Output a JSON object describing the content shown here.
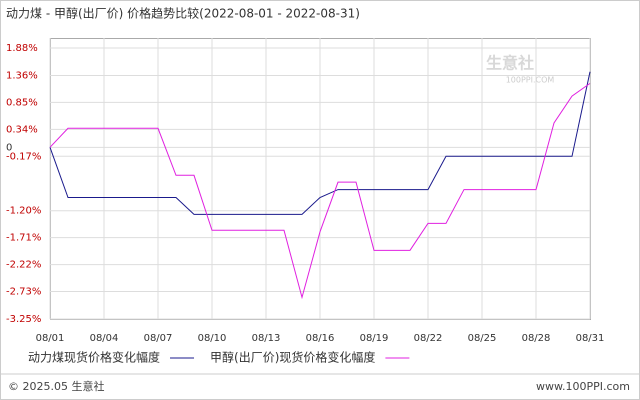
{
  "chart_data": {
    "type": "line",
    "title": "动力煤 - 甲醇(出厂价) 价格趋势比较(2022-08-01 - 2022-08-31)",
    "watermark": "生意社",
    "watermark_url": "100PPI.COM",
    "footer_left": "© 2025.05 生意社",
    "footer_right": "www.100PPI.com",
    "categories": [
      "08/01",
      null,
      null,
      "08/04",
      null,
      null,
      "08/07",
      null,
      null,
      "08/10",
      null,
      null,
      "08/13",
      null,
      null,
      "08/16",
      null,
      null,
      "08/19",
      null,
      null,
      "08/22",
      null,
      null,
      "08/25",
      null,
      null,
      "08/28",
      null,
      null,
      "08/31"
    ],
    "series": [
      {
        "name": "动力煤现货价格变化幅度",
        "color": "#1a1a8c",
        "values": [
          0,
          -0.95,
          -0.95,
          -0.95,
          -0.95,
          -0.95,
          -0.95,
          -0.95,
          -1.27,
          -1.27,
          -1.27,
          -1.27,
          -1.27,
          -1.27,
          -1.27,
          -0.95,
          -0.8,
          -0.8,
          -0.8,
          -0.8,
          -0.8,
          -0.8,
          -0.17,
          -0.17,
          -0.17,
          -0.17,
          -0.17,
          -0.17,
          -0.17,
          -0.17,
          1.43
        ]
      },
      {
        "name": "甲醇(出厂价)现货价格变化幅度",
        "color": "#e020e0",
        "values": [
          0,
          0.36,
          0.36,
          0.36,
          0.36,
          0.36,
          0.36,
          -0.53,
          -0.53,
          -1.57,
          -1.57,
          -1.57,
          -1.57,
          -1.57,
          -2.84,
          -1.6,
          -0.66,
          -0.66,
          -1.95,
          -1.95,
          -1.95,
          -1.44,
          -1.44,
          -0.8,
          -0.8,
          -0.8,
          -0.8,
          -0.8,
          0.46,
          0.97,
          1.21
        ]
      }
    ],
    "ylim": [
      -3.25,
      1.88
    ],
    "yticks": [
      {
        "value": 1.88,
        "label": "1.88%"
      },
      {
        "value": 1.36,
        "label": "1.36%"
      },
      {
        "value": 0.85,
        "label": "0.85%"
      },
      {
        "value": 0.34,
        "label": "0.34%"
      },
      {
        "value": -0.17,
        "label": "-0.17%"
      },
      0,
      {
        "value": -1.2,
        "label": "-1.20%"
      },
      {
        "value": -1.71,
        "label": "-1.71%"
      },
      {
        "value": -2.22,
        "label": "-2.22%"
      },
      {
        "value": -2.73,
        "label": "-2.73%"
      },
      {
        "value": -3.25,
        "label": "-3.25%"
      }
    ],
    "grid": true
  }
}
